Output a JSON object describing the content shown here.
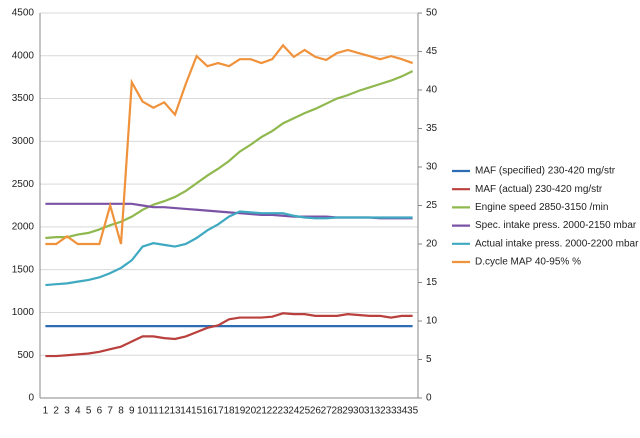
{
  "chart_data": {
    "type": "line",
    "categories": [
      "1",
      "2",
      "3",
      "4",
      "5",
      "6",
      "7",
      "8",
      "9",
      "10",
      "11",
      "12",
      "13",
      "14",
      "15",
      "16",
      "17",
      "18",
      "19",
      "20",
      "21",
      "22",
      "23",
      "24",
      "25",
      "26",
      "27",
      "28",
      "29",
      "30",
      "31",
      "32",
      "33",
      "34",
      "35"
    ],
    "series": [
      {
        "name": "MAF (specified) 230-420 mg/str",
        "color": "#2e6db4",
        "values": [
          840,
          840,
          840,
          840,
          840,
          840,
          840,
          840,
          840,
          840,
          840,
          840,
          840,
          840,
          840,
          840,
          840,
          840,
          840,
          840,
          840,
          840,
          840,
          840,
          840,
          840,
          840,
          840,
          840,
          840,
          840,
          840,
          840,
          840,
          840
        ]
      },
      {
        "name": "MAF (actual) 230-420 mg/str",
        "color": "#b9403c",
        "values": [
          490,
          490,
          500,
          510,
          520,
          540,
          570,
          600,
          660,
          720,
          720,
          700,
          690,
          720,
          770,
          820,
          850,
          920,
          940,
          940,
          940,
          950,
          990,
          980,
          980,
          960,
          960,
          960,
          980,
          970,
          960,
          960,
          940,
          960,
          960
        ]
      },
      {
        "name": "Engine speed 2850-3150 /min",
        "color": "#8fb84e",
        "values": [
          1870,
          1880,
          1880,
          1910,
          1930,
          1970,
          2020,
          2060,
          2120,
          2200,
          2260,
          2300,
          2350,
          2420,
          2510,
          2600,
          2680,
          2770,
          2880,
          2960,
          3050,
          3120,
          3210,
          3270,
          3330,
          3380,
          3440,
          3500,
          3540,
          3590,
          3630,
          3670,
          3710,
          3760,
          3820
        ]
      },
      {
        "name": "Spec. intake press. 2000-2150 mbar",
        "color": "#7b53a6",
        "values": [
          2270,
          2270,
          2270,
          2270,
          2270,
          2270,
          2270,
          2270,
          2270,
          2250,
          2230,
          2230,
          2220,
          2210,
          2200,
          2190,
          2180,
          2170,
          2160,
          2150,
          2140,
          2140,
          2130,
          2120,
          2120,
          2120,
          2120,
          2110,
          2110,
          2110,
          2110,
          2100,
          2100,
          2100,
          2100
        ]
      },
      {
        "name": "Actual intake press. 2000-2200 mbar",
        "color": "#3fa9c1",
        "values": [
          1320,
          1330,
          1340,
          1360,
          1380,
          1410,
          1460,
          1520,
          1610,
          1770,
          1810,
          1790,
          1770,
          1800,
          1870,
          1960,
          2030,
          2120,
          2180,
          2170,
          2160,
          2160,
          2160,
          2130,
          2110,
          2100,
          2100,
          2110,
          2110,
          2110,
          2110,
          2110,
          2110,
          2110,
          2110
        ]
      },
      {
        "name": "D.cycle MAP 40-95% %",
        "color": "#f0923b",
        "axis": "y2",
        "values": [
          20,
          20,
          21,
          20,
          20,
          20,
          25,
          20,
          41,
          38.5,
          37.7,
          38.4,
          36.8,
          40.8,
          44.4,
          43.1,
          43.5,
          43.1,
          44,
          44,
          43.5,
          44,
          45.8,
          44.3,
          45.2,
          44.3,
          43.9,
          44.8,
          45.2,
          44.8,
          44.4,
          44,
          44.4,
          44,
          43.5
        ]
      }
    ],
    "ylim": [
      0,
      4500
    ],
    "yticks": [
      0,
      500,
      1000,
      1500,
      2000,
      2500,
      3000,
      3500,
      4000,
      4500
    ],
    "y2lim": [
      0,
      50
    ],
    "y2ticks": [
      0,
      5,
      10,
      15,
      20,
      25,
      30,
      35,
      40,
      45,
      50
    ],
    "grid": true,
    "legend": "right"
  }
}
